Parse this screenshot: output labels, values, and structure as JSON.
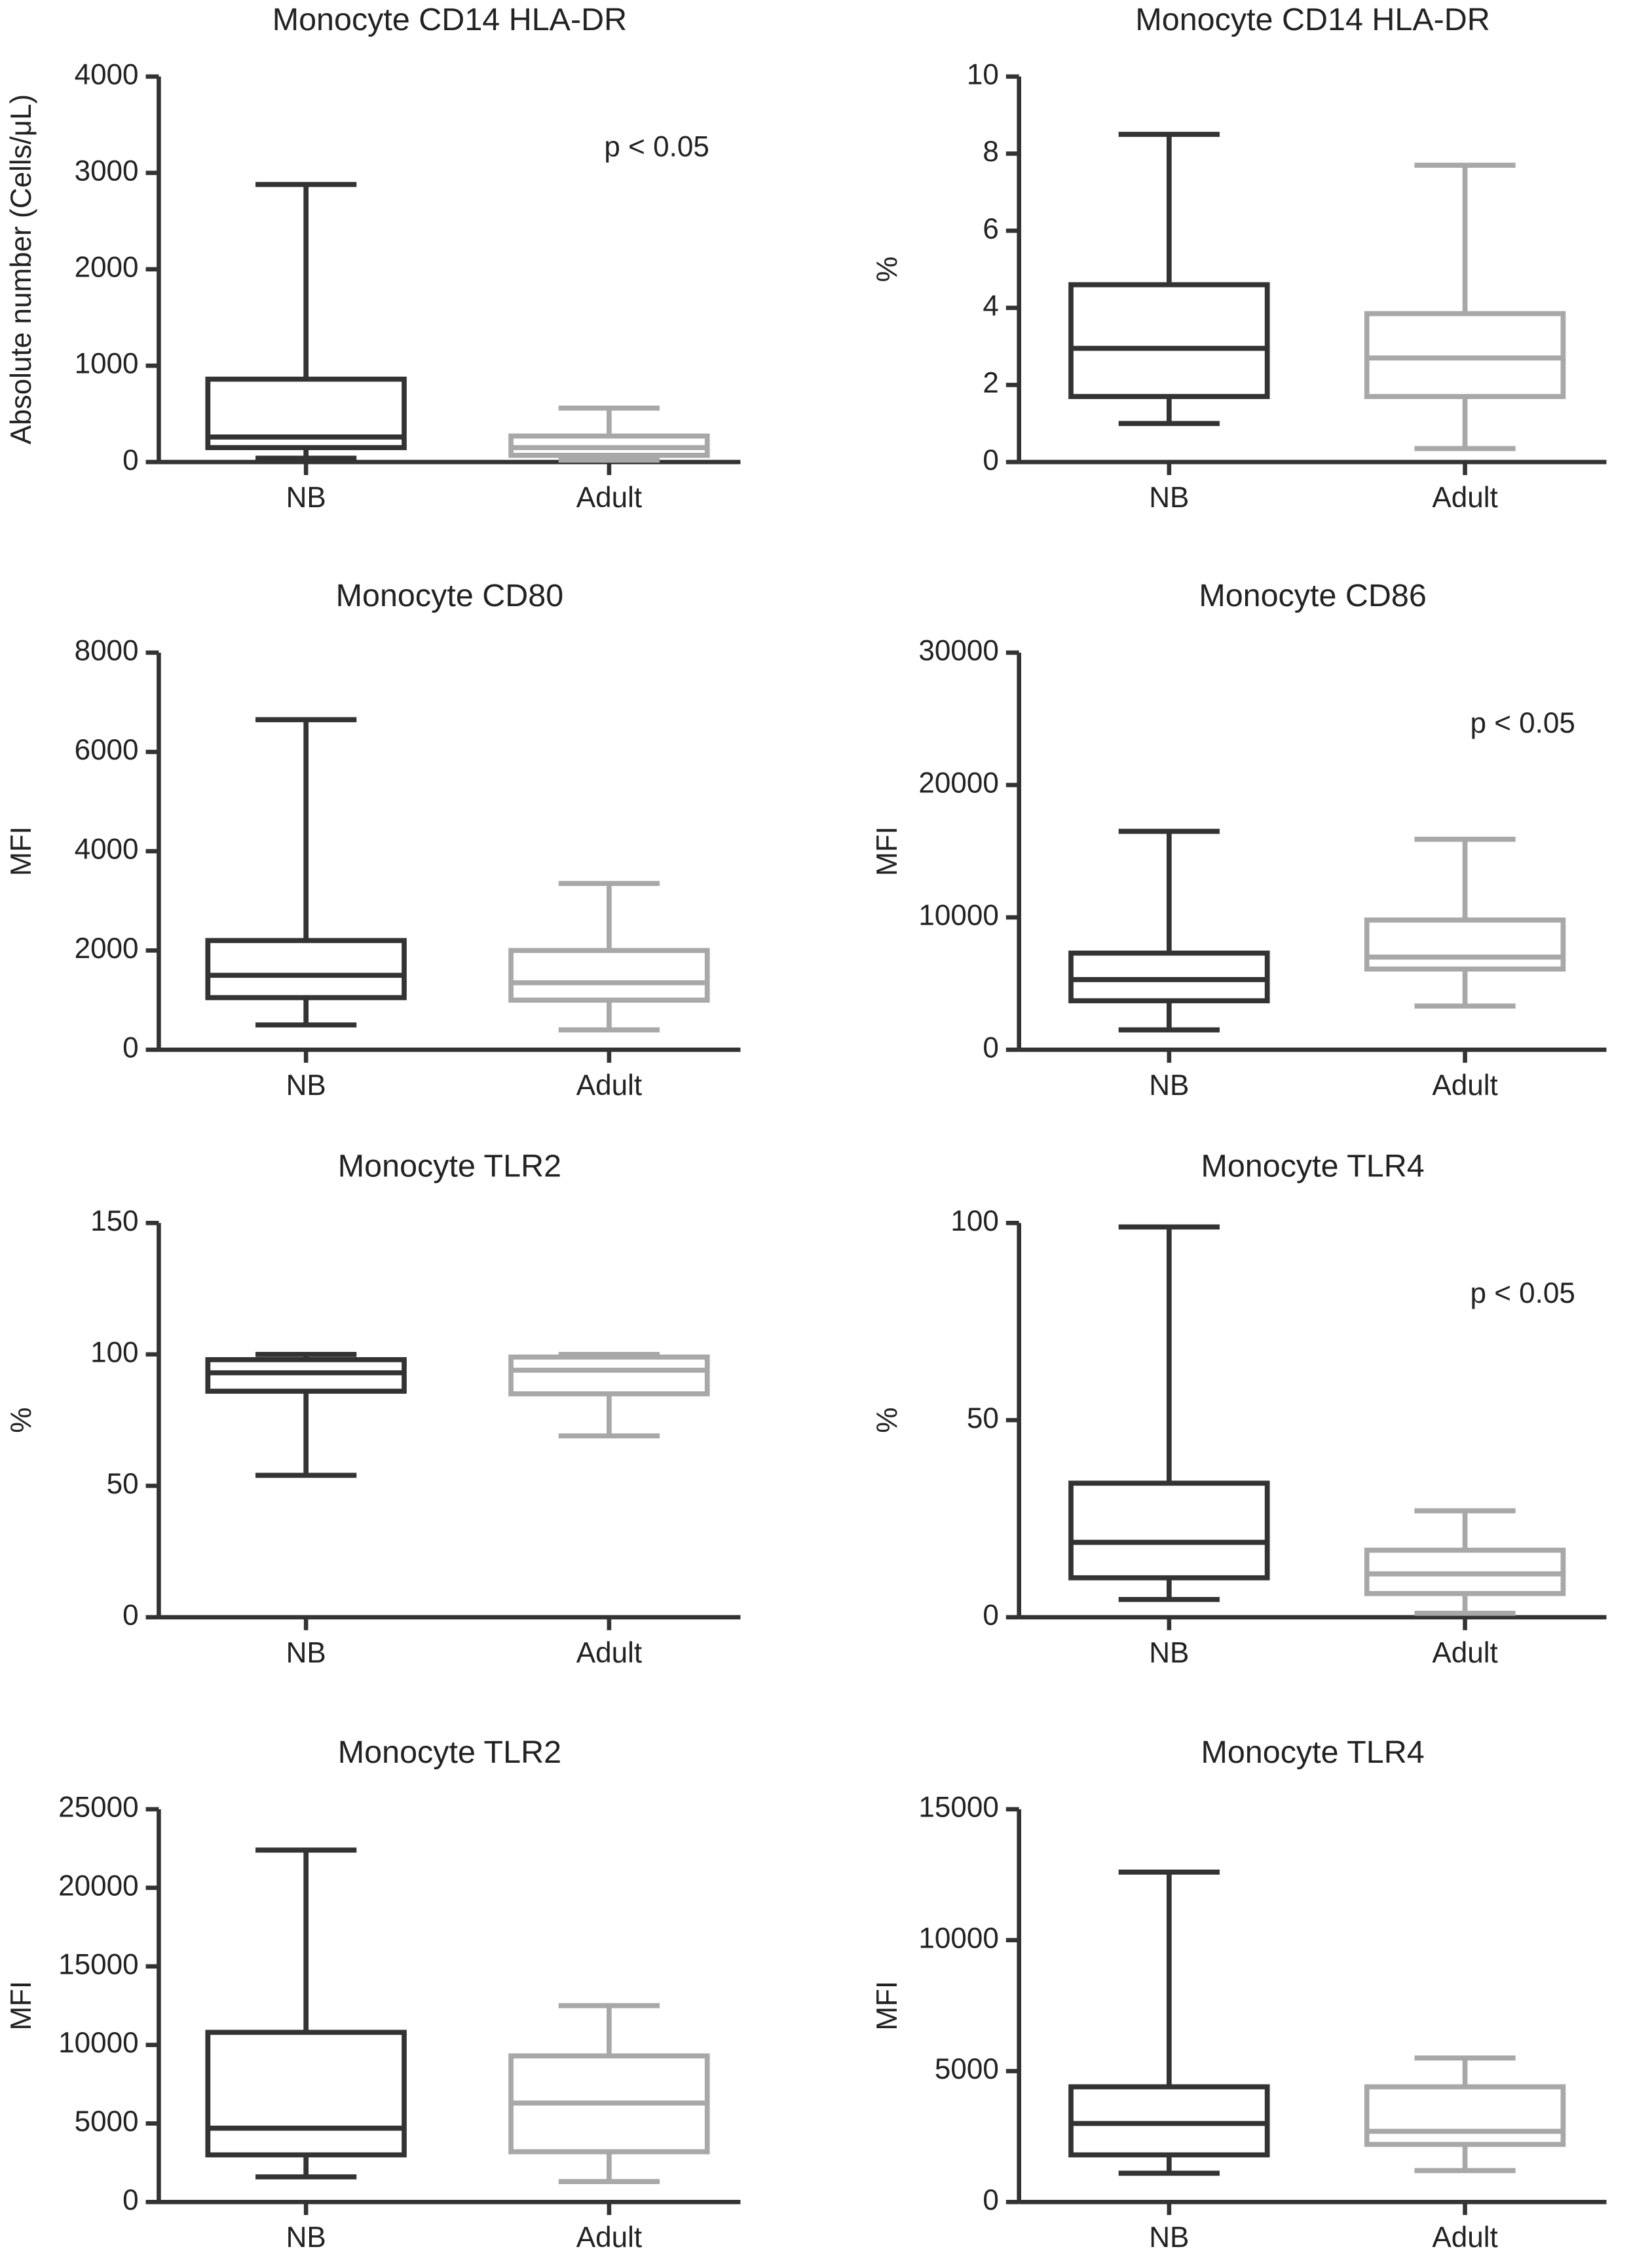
{
  "chart_data": [
    {
      "type": "box",
      "title": "Monocyte CD14 HLA-DR",
      "y_label": "Absolute number (Cells/μL)",
      "categories": [
        "NB",
        "Adult"
      ],
      "colors": [
        "#333333",
        "#a8a8a8"
      ],
      "annotation": "p < 0.05",
      "boxes": [
        {
          "min": 40,
          "q1": 150,
          "median": 260,
          "q3": 860,
          "max": 2880
        },
        {
          "min": 20,
          "q1": 70,
          "median": 150,
          "q3": 270,
          "max": 560
        }
      ],
      "ylim": [
        0,
        4000
      ],
      "yticks": [
        0,
        1000,
        2000,
        3000,
        4000
      ]
    },
    {
      "type": "box",
      "title": "Monocyte CD14 HLA-DR",
      "y_label": "%",
      "categories": [
        "NB",
        "Adult"
      ],
      "colors": [
        "#333333",
        "#a8a8a8"
      ],
      "boxes": [
        {
          "min": 1.0,
          "q1": 1.7,
          "median": 2.95,
          "q3": 4.6,
          "max": 8.5
        },
        {
          "min": 0.35,
          "q1": 1.7,
          "median": 2.7,
          "q3": 3.85,
          "max": 7.7
        }
      ],
      "ylim": [
        0,
        10
      ],
      "yticks": [
        0,
        2,
        4,
        6,
        8,
        10
      ]
    },
    {
      "type": "box",
      "title": "Monocyte CD80",
      "y_label": "MFI",
      "categories": [
        "NB",
        "Adult"
      ],
      "colors": [
        "#333333",
        "#a8a8a8"
      ],
      "boxes": [
        {
          "min": 500,
          "q1": 1050,
          "median": 1500,
          "q3": 2200,
          "max": 6650
        },
        {
          "min": 400,
          "q1": 1000,
          "median": 1350,
          "q3": 2000,
          "max": 3350
        }
      ],
      "ylim": [
        0,
        8000
      ],
      "yticks": [
        0,
        2000,
        4000,
        6000,
        8000
      ]
    },
    {
      "type": "box",
      "title": "Monocyte CD86",
      "y_label": "MFI",
      "categories": [
        "NB",
        "Adult"
      ],
      "colors": [
        "#333333",
        "#a8a8a8"
      ],
      "annotation": "p < 0.05",
      "boxes": [
        {
          "min": 1500,
          "q1": 3700,
          "median": 5300,
          "q3": 7300,
          "max": 16500
        },
        {
          "min": 3300,
          "q1": 6100,
          "median": 7000,
          "q3": 9800,
          "max": 15900
        }
      ],
      "ylim": [
        0,
        30000
      ],
      "yticks": [
        0,
        10000,
        20000,
        30000
      ]
    },
    {
      "type": "box",
      "title": "Monocyte TLR2",
      "y_label": "%",
      "categories": [
        "NB",
        "Adult"
      ],
      "colors": [
        "#333333",
        "#a8a8a8"
      ],
      "boxes": [
        {
          "min": 54,
          "q1": 86,
          "median": 93,
          "q3": 98,
          "max": 100
        },
        {
          "min": 69,
          "q1": 85,
          "median": 94,
          "q3": 99,
          "max": 100
        }
      ],
      "ylim": [
        0,
        150
      ],
      "yticks": [
        0,
        50,
        100,
        150
      ]
    },
    {
      "type": "box",
      "title": "Monocyte TLR4",
      "y_label": "%",
      "categories": [
        "NB",
        "Adult"
      ],
      "colors": [
        "#333333",
        "#a8a8a8"
      ],
      "annotation": "p < 0.05",
      "boxes": [
        {
          "min": 4.5,
          "q1": 10,
          "median": 19,
          "q3": 34,
          "max": 99
        },
        {
          "min": 1,
          "q1": 6,
          "median": 11,
          "q3": 17,
          "max": 27
        }
      ],
      "ylim": [
        0,
        100
      ],
      "yticks": [
        0,
        50,
        100
      ]
    },
    {
      "type": "box",
      "title": "Monocyte TLR2",
      "y_label": "MFI",
      "categories": [
        "NB",
        "Adult"
      ],
      "colors": [
        "#333333",
        "#a8a8a8"
      ],
      "boxes": [
        {
          "min": 1600,
          "q1": 3000,
          "median": 4700,
          "q3": 10800,
          "max": 22400
        },
        {
          "min": 1300,
          "q1": 3200,
          "median": 6300,
          "q3": 9300,
          "max": 12500
        }
      ],
      "ylim": [
        0,
        25000
      ],
      "yticks": [
        0,
        5000,
        10000,
        15000,
        20000,
        25000
      ]
    },
    {
      "type": "box",
      "title": "Monocyte TLR4",
      "y_label": "MFI",
      "categories": [
        "NB",
        "Adult"
      ],
      "colors": [
        "#333333",
        "#a8a8a8"
      ],
      "boxes": [
        {
          "min": 1100,
          "q1": 1800,
          "median": 3000,
          "q3": 4400,
          "max": 12600
        },
        {
          "min": 1200,
          "q1": 2200,
          "median": 2700,
          "q3": 4400,
          "max": 5500
        }
      ],
      "ylim": [
        0,
        15000
      ],
      "yticks": [
        0,
        5000,
        10000,
        15000
      ]
    }
  ]
}
